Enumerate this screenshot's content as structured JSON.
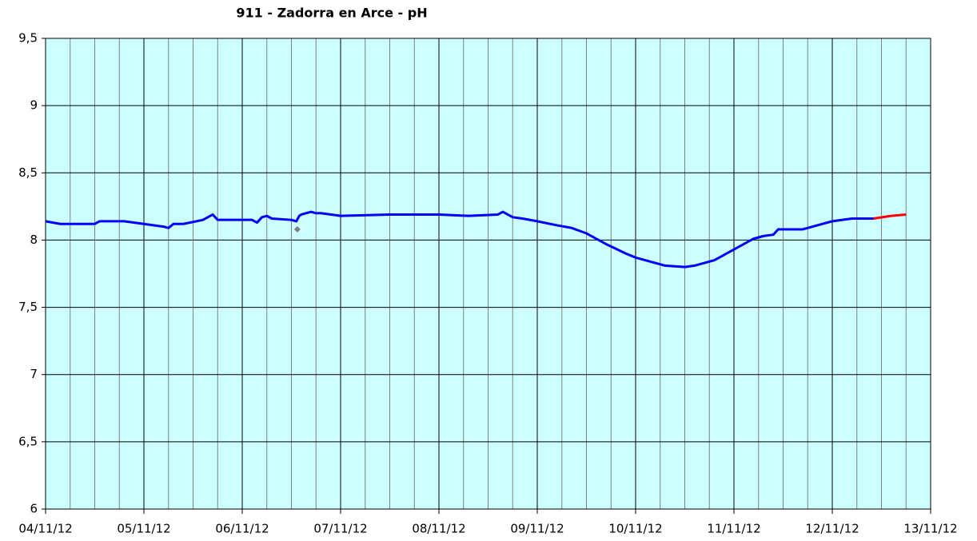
{
  "chart_data": {
    "type": "line",
    "title": "911 - Zadorra en Arce - pH",
    "xlim": [
      0,
      9
    ],
    "xticks": [
      {
        "value": 0,
        "label": "04/11/12"
      },
      {
        "value": 1,
        "label": "05/11/12"
      },
      {
        "value": 2,
        "label": "06/11/12"
      },
      {
        "value": 3,
        "label": "07/11/12"
      },
      {
        "value": 4,
        "label": "08/11/12"
      },
      {
        "value": 5,
        "label": "09/11/12"
      },
      {
        "value": 6,
        "label": "10/11/12"
      },
      {
        "value": 7,
        "label": "11/11/12"
      },
      {
        "value": 8,
        "label": "12/11/12"
      },
      {
        "value": 9,
        "label": "13/11/12"
      }
    ],
    "minor_grid_step": 0.25,
    "ylim": [
      6,
      9.5
    ],
    "yticks": [
      6,
      {
        "value": 6.5,
        "label": "6,5"
      },
      7,
      {
        "value": 7.5,
        "label": "7,5"
      },
      8,
      {
        "value": 8.5,
        "label": "8,5"
      },
      9,
      {
        "value": 9.5,
        "label": "9,5"
      }
    ],
    "grid": true,
    "background": "#ccffff",
    "series": [
      {
        "color": "#0000ff",
        "x": [
          0,
          0.15,
          0.5,
          0.55,
          0.8,
          1.0,
          1.2,
          1.25,
          1.3,
          1.4,
          1.6,
          1.65,
          1.7,
          1.75,
          2.0,
          2.1,
          2.15,
          2.2,
          2.25,
          2.3,
          2.5,
          2.55,
          2.58,
          2.6,
          2.7,
          2.75,
          2.8,
          3.0,
          3.5,
          4.0,
          4.3,
          4.6,
          4.65,
          4.7,
          4.75,
          4.85,
          5.0,
          5.2,
          5.35,
          5.5,
          5.7,
          5.9,
          6.0,
          6.1,
          6.3,
          6.5,
          6.6,
          6.8,
          7.0,
          7.2,
          7.3,
          7.4,
          7.45,
          7.55,
          7.7,
          7.9,
          8.0,
          8.2,
          8.42
        ],
        "values": [
          8.14,
          8.12,
          8.12,
          8.14,
          8.14,
          8.12,
          8.1,
          8.09,
          8.12,
          8.12,
          8.15,
          8.17,
          8.19,
          8.15,
          8.15,
          8.15,
          8.13,
          8.17,
          8.18,
          8.16,
          8.15,
          8.14,
          8.18,
          8.19,
          8.21,
          8.2,
          8.2,
          8.18,
          8.19,
          8.19,
          8.18,
          8.19,
          8.21,
          8.19,
          8.17,
          8.16,
          8.14,
          8.11,
          8.09,
          8.05,
          7.97,
          7.9,
          7.87,
          7.85,
          7.81,
          7.8,
          7.81,
          7.85,
          7.93,
          8.01,
          8.03,
          8.04,
          8.08,
          8.08,
          8.08,
          8.12,
          8.14,
          8.16,
          8.16
        ]
      },
      {
        "color": "#ff0000",
        "x": [
          8.42,
          8.6,
          8.75
        ],
        "values": [
          8.16,
          8.18,
          8.19
        ]
      }
    ],
    "points": {
      "color": "#808080",
      "x": [
        2.56
      ],
      "values": [
        8.08
      ]
    }
  }
}
